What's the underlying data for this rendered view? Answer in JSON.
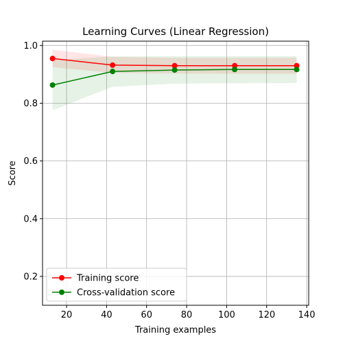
{
  "chart_data": {
    "type": "line",
    "title": "Learning Curves (Linear Regression)",
    "xlabel": "Training examples",
    "ylabel": "Score",
    "xlim": [
      8,
      141
    ],
    "ylim": [
      0.1,
      1.015
    ],
    "xticks": [
      20,
      40,
      60,
      80,
      100,
      120,
      140
    ],
    "yticks": [
      0.2,
      0.4,
      0.6,
      0.8,
      1.0
    ],
    "xtick_labels": [
      "20",
      "40",
      "60",
      "80",
      "100",
      "120",
      "140"
    ],
    "ytick_labels": [
      "0.2",
      "0.4",
      "0.6",
      "0.8",
      "1.0"
    ],
    "grid": true,
    "legend_position": "lower-left",
    "x": [
      13,
      43,
      74,
      104,
      135
    ],
    "series": [
      {
        "name": "Training score",
        "color": "#ff0000",
        "values": [
          0.955,
          0.932,
          0.93,
          0.93,
          0.93
        ],
        "band_lower": [
          0.925,
          0.905,
          0.903,
          0.902,
          0.902
        ],
        "band_upper": [
          0.985,
          0.961,
          0.957,
          0.957,
          0.957
        ],
        "band_color": "#ff0000"
      },
      {
        "name": "Cross-validation score",
        "color": "#008000",
        "values": [
          0.863,
          0.91,
          0.915,
          0.917,
          0.917
        ],
        "band_lower": [
          0.776,
          0.857,
          0.868,
          0.869,
          0.87
        ],
        "band_upper": [
          0.95,
          0.962,
          0.963,
          0.963,
          0.963
        ],
        "band_color": "#008000"
      }
    ]
  }
}
